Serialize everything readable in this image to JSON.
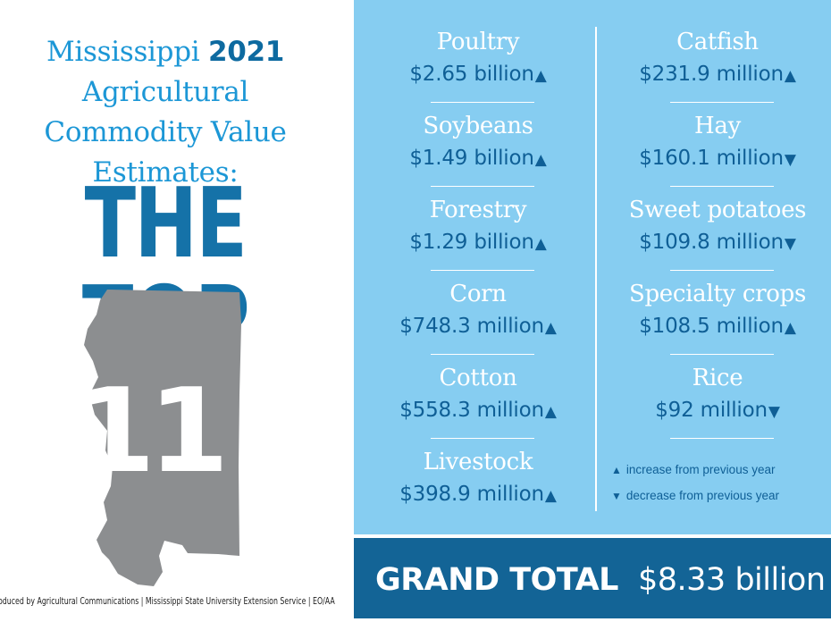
{
  "title": {
    "line1_prefix": "Mississippi ",
    "year": "2021",
    "line2": "Agricultural",
    "line3": "Commodity Value",
    "line4": "Estimates:",
    "headline": "THE TOP",
    "map_number": "11"
  },
  "footer": "oduced by Agricultural Communications | Mississippi State University Extension Service | EO/AA",
  "commodities_left": [
    {
      "name": "Poultry",
      "value": "$2.65 billion",
      "trend": "▲"
    },
    {
      "name": "Soybeans",
      "value": "$1.49 billion",
      "trend": "▲"
    },
    {
      "name": "Forestry",
      "value": "$1.29 billion",
      "trend": "▲"
    },
    {
      "name": "Corn",
      "value": "$748.3 million",
      "trend": "▲"
    },
    {
      "name": "Cotton",
      "value": "$558.3 million",
      "trend": "▲"
    },
    {
      "name": "Livestock",
      "value": "$398.9 million",
      "trend": "▲"
    }
  ],
  "commodities_right": [
    {
      "name": "Catfish",
      "value": "$231.9 million",
      "trend": "▲"
    },
    {
      "name": "Hay",
      "value": "$160.1 million",
      "trend": "▼"
    },
    {
      "name": "Sweet potatoes",
      "value": "$109.8 million",
      "trend": "▼"
    },
    {
      "name": "Specialty crops",
      "value": "$108.5 million",
      "trend": "▲"
    },
    {
      "name": "Rice",
      "value": "$92 million",
      "trend": "▼"
    }
  ],
  "legend": {
    "up_symbol": "▲",
    "up_label": "increase from previous year",
    "down_symbol": "▼",
    "down_label": "decrease from previous year"
  },
  "grand_total": {
    "label": "GRAND TOTAL",
    "value": "$8.33 billion"
  },
  "colors": {
    "light_blue_panel": "#86cdf1",
    "dark_blue": "#136496",
    "title_blue": "#1c97d6",
    "map_gray": "#8c8e90"
  }
}
